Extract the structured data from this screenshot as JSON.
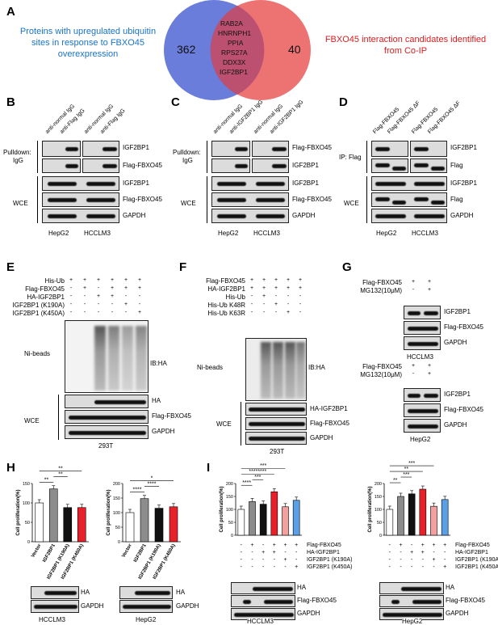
{
  "panels": {
    "A": "A",
    "B": "B",
    "C": "C",
    "D": "D",
    "E": "E",
    "F": "F",
    "G": "G",
    "H": "H",
    "I": "I"
  },
  "venn": {
    "left_text": "Proteins with upregulated ubiquitin sites  in  response to FBXO45 overexpression",
    "left_count": "362",
    "right_count": "40",
    "overlap": [
      "RAB2A",
      "HNRNPH1",
      "PPIA",
      "RPS27A",
      "DDX3X",
      "IGF2BP1"
    ],
    "right_text": "FBXO45 interaction candidates identified from Co-IP",
    "colors": {
      "left": "#5b6fd6",
      "right": "#ea5a5a",
      "left_text": "#1a73c8",
      "right_text": "#d62020"
    }
  },
  "B": {
    "lanes": [
      "anti-normal IgG",
      "anti-Flag IgG",
      "anti-normal IgG",
      "anti-Flag IgG"
    ],
    "row_group_1": "Pulldown:",
    "row_group_1b": "IgG",
    "row_group_2": "WCE",
    "bands": [
      "IGF2BP1",
      "Flag-FBXO45",
      "IGF2BP1",
      "Flag-FBXO45",
      "GAPDH"
    ],
    "cells": [
      "HepG2",
      "HCCLM3"
    ]
  },
  "C": {
    "lanes": [
      "anti-normal IgG",
      "anti-IGF2BP1 IgG",
      "anti-normal IgG",
      "anti-IGF2BP1 IgG"
    ],
    "row_group_1": "Pulldown:",
    "row_group_1b": "IgG",
    "row_group_2": "WCE",
    "bands": [
      "Flag-FBXO45",
      "IGF2BP1",
      "IGF2BP1",
      "Flag-FBXO45",
      "GAPDH"
    ],
    "cells": [
      "HepG2",
      "HCCLM3"
    ]
  },
  "D": {
    "lanes": [
      "Flag-FBXO45",
      "Flag-FBXO45 ΔF",
      "Flag-FBXO45",
      "Flag-FBXO45 ΔF"
    ],
    "row_group_1": "IP: Flag",
    "row_group_2": "WCE",
    "bands": [
      "IGF2BP1",
      "Flag",
      "IGF2BP1",
      "Flag",
      "GAPDH"
    ],
    "cells": [
      "HepG2",
      "HCCLM3"
    ]
  },
  "E": {
    "rows": [
      {
        "label": "His-Ub",
        "signs": [
          "+",
          "+",
          "+",
          "+",
          "+",
          "+"
        ]
      },
      {
        "label": "Flag-FBXO45",
        "signs": [
          "-",
          "+",
          "-",
          "+",
          "+",
          "+"
        ]
      },
      {
        "label": "HA-IGF2BP1",
        "signs": [
          "-",
          "-",
          "+",
          "+",
          "-",
          "-"
        ]
      },
      {
        "label": "IGF2BP1 (K190A)",
        "signs": [
          "-",
          "-",
          "-",
          "-",
          "+",
          "-"
        ]
      },
      {
        "label": "IGF2BP1 (K450A)",
        "signs": [
          "-",
          "-",
          "-",
          "-",
          "-",
          "+"
        ]
      }
    ],
    "ni": "Ni-beads",
    "ib": "IB:HA",
    "wce": "WCE",
    "bands": [
      "HA",
      "Flag-FBXO45",
      "GAPDH"
    ],
    "cell": "293T"
  },
  "F": {
    "rows": [
      {
        "label": "Flag-FBXO45",
        "signs": [
          "+",
          "+",
          "+",
          "+",
          "+"
        ]
      },
      {
        "label": "HA-IGF2BP1",
        "signs": [
          "+",
          "+",
          "+",
          "+",
          "+"
        ]
      },
      {
        "label": "His-Ub",
        "signs": [
          "-",
          "+",
          "-",
          "-",
          "-"
        ]
      },
      {
        "label": "His-Ub K48R",
        "signs": [
          "-",
          "-",
          "+",
          "-",
          "-"
        ]
      },
      {
        "label": "His-Ub K63R",
        "signs": [
          "-",
          "-",
          "-",
          "+",
          "-"
        ]
      }
    ],
    "ni": "Ni-beads",
    "ib": "IB:HA",
    "wce": "WCE",
    "bands": [
      "HA-IGF2BP1",
      "Flag-FBXO45",
      "GAPDH"
    ],
    "cell": "293T"
  },
  "G": {
    "blocks": [
      {
        "rows": [
          {
            "label": "Flag-FBXO45",
            "signs": [
              "+",
              "+"
            ]
          },
          {
            "label": "MG132(10μM)",
            "signs": [
              "-",
              "+"
            ]
          }
        ],
        "bands": [
          "IGF2BP1",
          "Flag-FBXO45",
          "GAPDH"
        ],
        "cell": "HCCLM3"
      },
      {
        "rows": [
          {
            "label": "Flag-FBXO45",
            "signs": [
              "+",
              "+"
            ]
          },
          {
            "label": "MG132(10μM)",
            "signs": [
              "-",
              "+"
            ]
          }
        ],
        "bands": [
          "IGF2BP1",
          "Flag-FBXO45",
          "GAPDH"
        ],
        "cell": "HepG2"
      }
    ]
  },
  "chart_data": [
    {
      "type": "bar",
      "panel": "H-HCCLM3",
      "categories": [
        "Vector",
        "IGF2BP1",
        "IGF2BP1 (K190A)",
        "IGF2BP1 (K450A)"
      ],
      "values": [
        100,
        136,
        88,
        88
      ],
      "ylabel": "Cell proliferation(%)",
      "ylim": [
        0,
        150
      ],
      "yticks": [
        0,
        50,
        100,
        150
      ],
      "colors": [
        "#ffffff",
        "#8c8c8c",
        "#111111",
        "#e8202a"
      ],
      "sig": [
        "**",
        "**",
        "**"
      ],
      "blot_bands": [
        "HA",
        "GAPDH"
      ],
      "cell": "HCCLM3"
    },
    {
      "type": "bar",
      "panel": "H-HepG2",
      "categories": [
        "Vector",
        "IGF2BP1",
        "IGF2BP1 (K190A)",
        "IGF2BP1 (K450A)"
      ],
      "values": [
        100,
        148,
        115,
        120
      ],
      "ylabel": "Cell proliferation(%)",
      "ylim": [
        0,
        200
      ],
      "yticks": [
        0,
        50,
        100,
        150,
        200
      ],
      "colors": [
        "#ffffff",
        "#8c8c8c",
        "#111111",
        "#e8202a"
      ],
      "sig": [
        "****",
        "****",
        "*"
      ],
      "blot_bands": [
        "HA",
        "GAPDH"
      ],
      "cell": "HepG2"
    },
    {
      "type": "bar",
      "panel": "I-HCCLM3",
      "categories": [
        "1",
        "2",
        "3",
        "4",
        "5",
        "6"
      ],
      "values": [
        100,
        130,
        120,
        168,
        110,
        135
      ],
      "ylabel": "Cell proliferation(%)",
      "ylim": [
        0,
        200
      ],
      "yticks": [
        0,
        50,
        100,
        150,
        200
      ],
      "colors": [
        "#ffffff",
        "#8c8c8c",
        "#111111",
        "#e8202a",
        "#f4a0a0",
        "#5aa0e6"
      ],
      "sig": [
        "****",
        "***",
        "********",
        "***"
      ],
      "rows": [
        {
          "label": "Flag-FBXO45",
          "signs": [
            "-",
            "+",
            "-",
            "+",
            "+",
            "+"
          ]
        },
        {
          "label": "HA-IGF2BP1",
          "signs": [
            "-",
            "-",
            "+",
            "+",
            "-",
            "-"
          ]
        },
        {
          "label": "IGF2BP1 (K190A)",
          "signs": [
            "-",
            "-",
            "-",
            "-",
            "+",
            "-"
          ]
        },
        {
          "label": "IGF2BP1 (K450A)",
          "signs": [
            "-",
            "-",
            "-",
            "-",
            "-",
            "+"
          ]
        }
      ],
      "blot_bands": [
        "HA",
        "Flag-FBXO45",
        "GAPDH"
      ],
      "cell": "HCCLM3"
    },
    {
      "type": "bar",
      "panel": "I-HepG2",
      "categories": [
        "1",
        "2",
        "3",
        "4",
        "5",
        "6"
      ],
      "values": [
        100,
        150,
        160,
        178,
        112,
        138
      ],
      "ylabel": "Cell proliferation(%)",
      "ylim": [
        0,
        200
      ],
      "yticks": [
        0,
        50,
        100,
        150,
        200
      ],
      "colors": [
        "#ffffff",
        "#8c8c8c",
        "#111111",
        "#e8202a",
        "#f4a0a0",
        "#5aa0e6"
      ],
      "sig": [
        "**",
        "***",
        "**",
        "***",
        "***"
      ],
      "rows": [
        {
          "label": "Flag-FBXO45",
          "signs": [
            "-",
            "+",
            "-",
            "+",
            "+",
            "+"
          ]
        },
        {
          "label": "HA-IGF2BP1",
          "signs": [
            "-",
            "-",
            "+",
            "+",
            "-",
            "-"
          ]
        },
        {
          "label": "IGF2BP1 (K190A)",
          "signs": [
            "-",
            "-",
            "-",
            "-",
            "+",
            "-"
          ]
        },
        {
          "label": "IGF2BP1 (K450A)",
          "signs": [
            "-",
            "-",
            "-",
            "-",
            "-",
            "+"
          ]
        }
      ],
      "blot_bands": [
        "HA",
        "Flag-FBXO45",
        "GAPDH"
      ],
      "cell": "HepG2"
    }
  ]
}
